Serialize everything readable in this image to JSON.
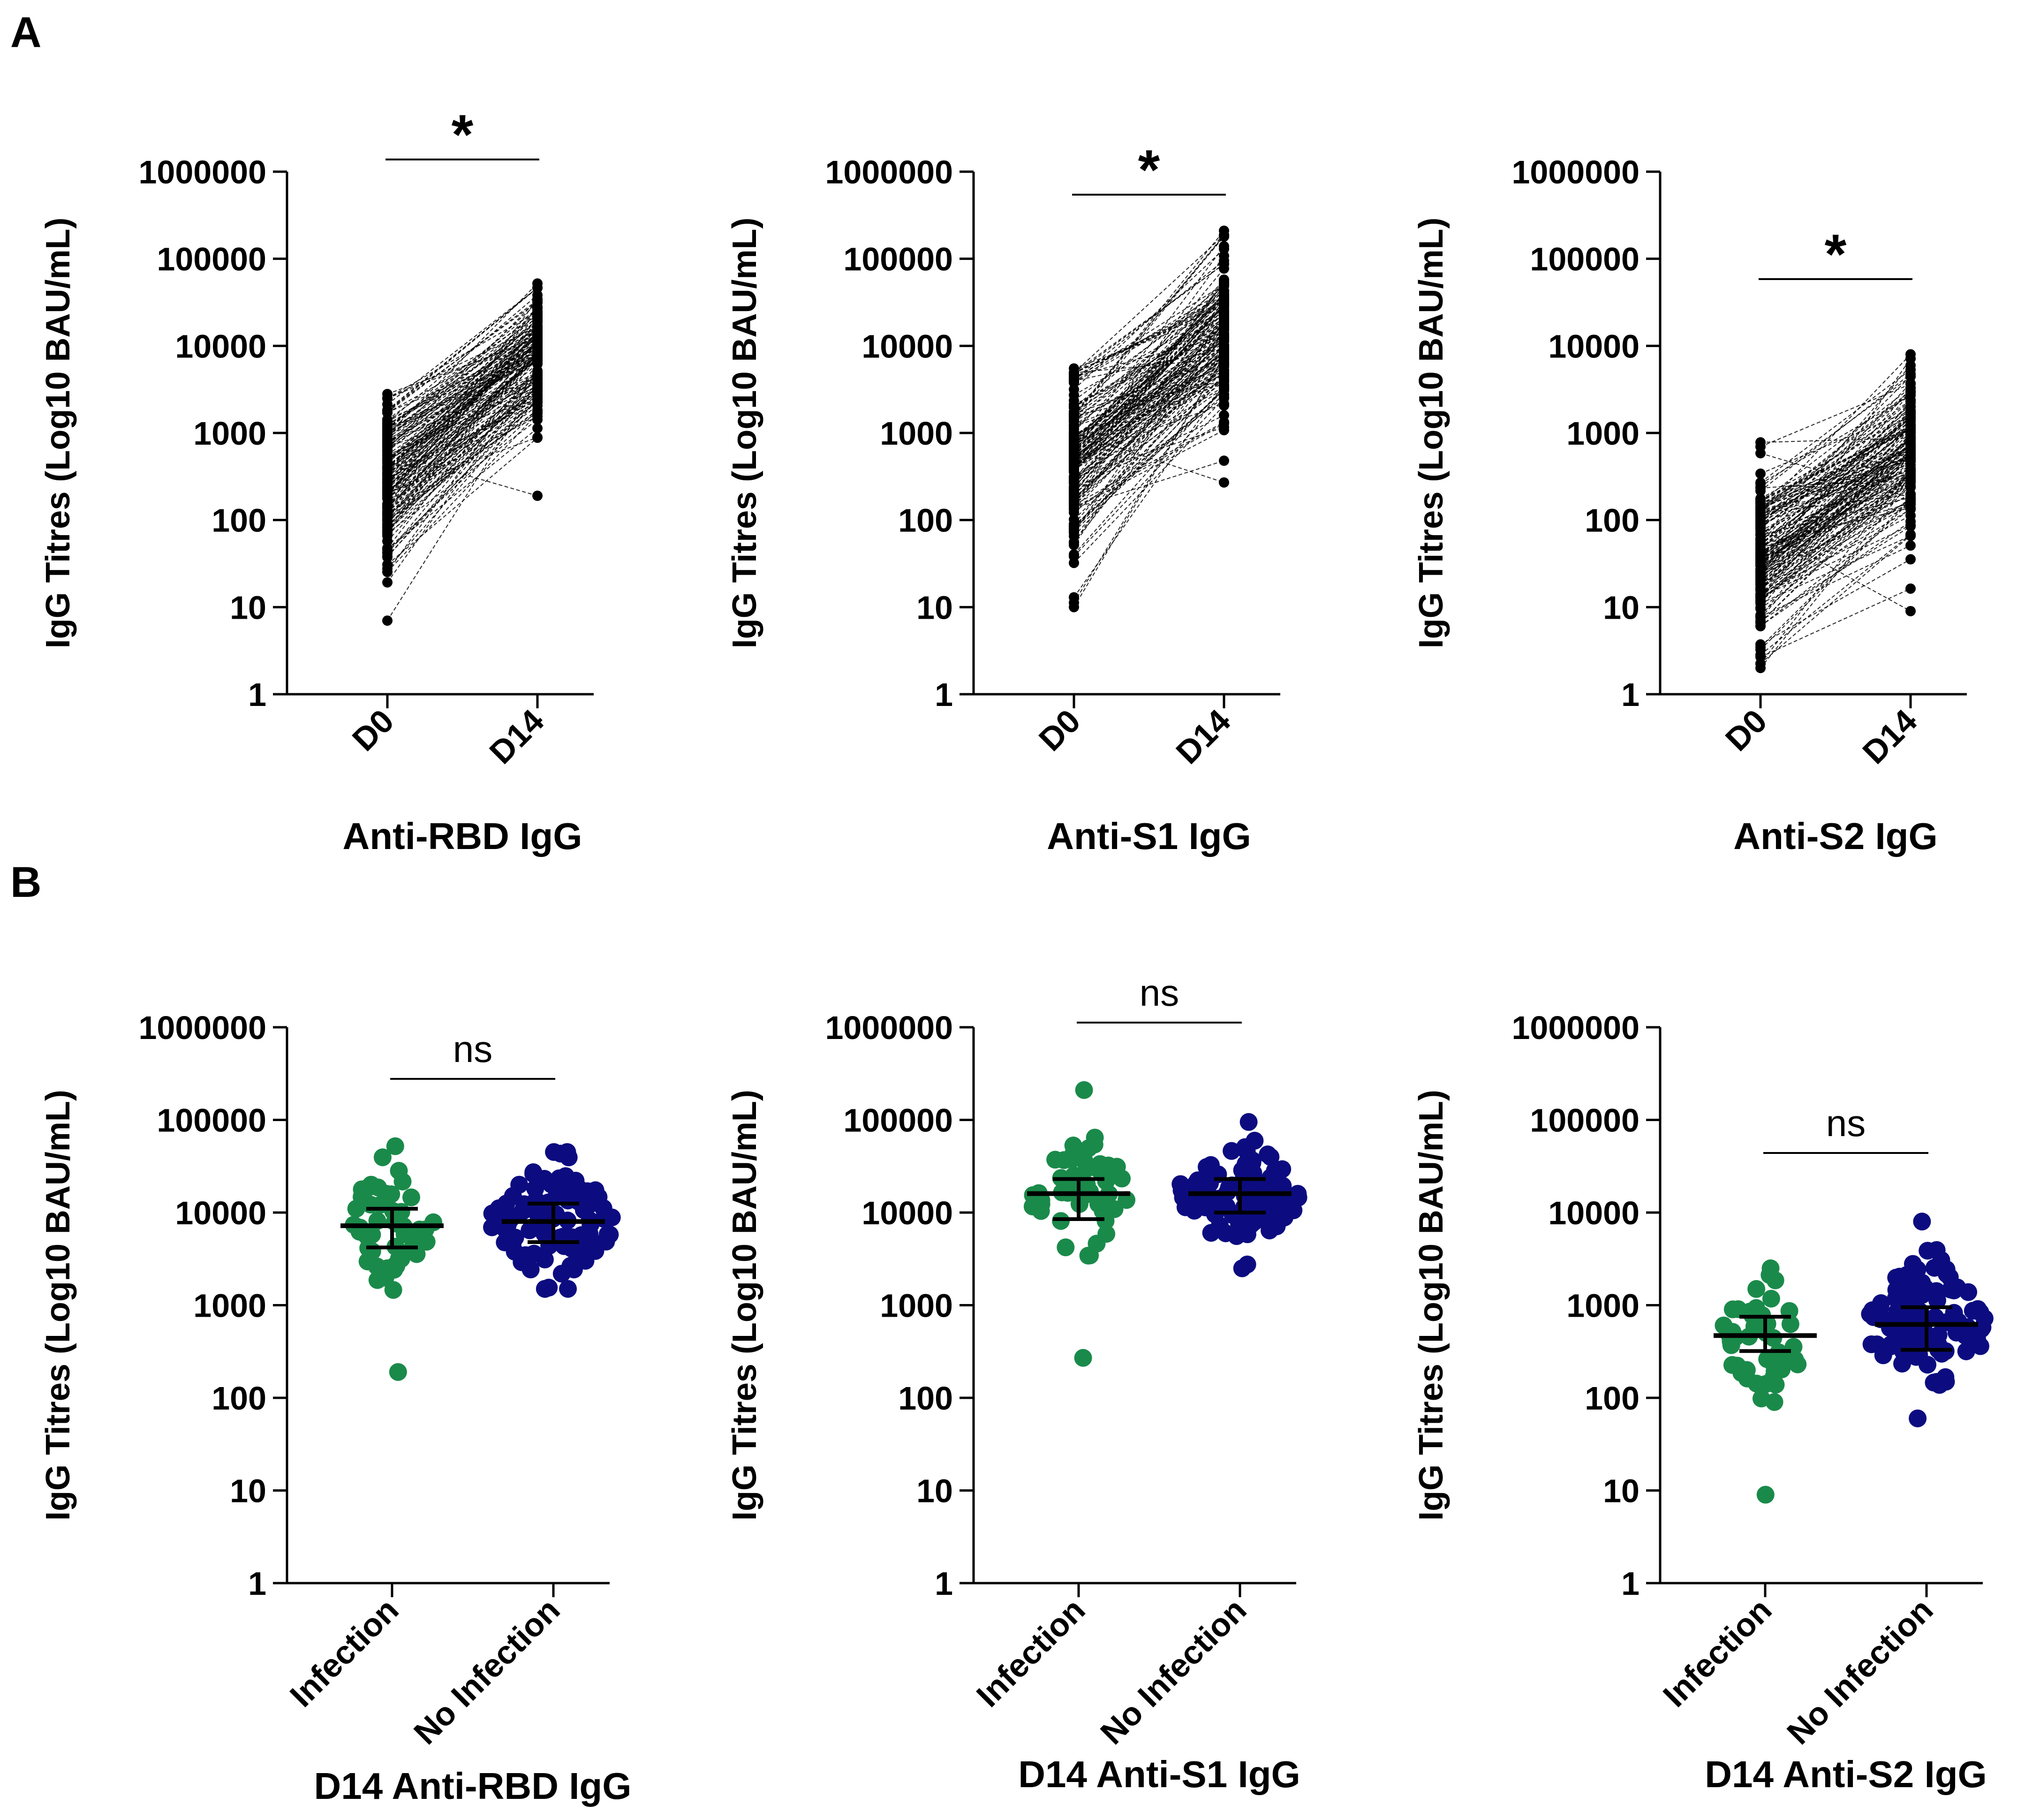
{
  "panels": {
    "A": {
      "label": "A"
    },
    "B": {
      "label": "B"
    }
  },
  "chart_data": [
    {
      "type": "paired-line",
      "panel": "A",
      "title": "",
      "xlabel": "Anti-RBD IgG",
      "ylabel": "IgG Titres (Log10 BAU/mL)",
      "yscale": "log",
      "ylim": [
        1,
        1000000
      ],
      "yticks": [
        "1",
        "10",
        "100",
        "1000",
        "10000",
        "100000",
        "1000000"
      ],
      "categories": [
        "D0",
        "D14"
      ],
      "n_pairs": 160,
      "d0_range": [
        7,
        2800
      ],
      "d14_range": [
        190,
        52000
      ],
      "d0_median": 300,
      "d14_median": 7500,
      "significance": "*"
    },
    {
      "type": "paired-line",
      "panel": "A",
      "title": "",
      "xlabel": "Anti-S1 IgG",
      "ylabel": "IgG Titres (Log10 BAU/mL)",
      "yscale": "log",
      "ylim": [
        1,
        1000000
      ],
      "yticks": [
        "1",
        "10",
        "100",
        "1000",
        "10000",
        "100000",
        "1000000"
      ],
      "categories": [
        "D0",
        "D14"
      ],
      "n_pairs": 160,
      "d0_range": [
        10,
        5500
      ],
      "d14_range": [
        270,
        210000
      ],
      "d0_median": 500,
      "d14_median": 15000,
      "significance": "*"
    },
    {
      "type": "paired-line",
      "panel": "A",
      "title": "",
      "xlabel": "Anti-S2 IgG",
      "ylabel": "IgG Titres (Log10 BAU/mL)",
      "yscale": "log",
      "ylim": [
        1,
        1000000
      ],
      "yticks": [
        "1",
        "10",
        "100",
        "1000",
        "10000",
        "100000",
        "1000000"
      ],
      "categories": [
        "D0",
        "D14"
      ],
      "n_pairs": 160,
      "d0_range": [
        2,
        780
      ],
      "d14_range": [
        9,
        8000
      ],
      "d0_median": 40,
      "d14_median": 550,
      "significance": "*"
    },
    {
      "type": "scatter",
      "panel": "B",
      "title": "",
      "xlabel": "D14 Anti-RBD IgG",
      "ylabel": "IgG Titres (Log10 BAU/mL)",
      "yscale": "log",
      "ylim": [
        1,
        1000000
      ],
      "yticks": [
        "1",
        "10",
        "100",
        "1000",
        "10000",
        "100000",
        "1000000"
      ],
      "categories": [
        "Infection",
        "No Infection"
      ],
      "series": [
        {
          "name": "Infection",
          "color": "#1a8a4a",
          "n": 50,
          "median": 7200,
          "iqr": [
            4200,
            11000
          ],
          "min": 190,
          "max": 52000
        },
        {
          "name": "No Infection",
          "color": "#0c0c80",
          "n": 110,
          "median": 8000,
          "iqr": [
            4800,
            12500
          ],
          "min": 1500,
          "max": 45000
        }
      ],
      "significance": "ns"
    },
    {
      "type": "scatter",
      "panel": "B",
      "title": "",
      "xlabel": "D14 Anti-S1 IgG",
      "ylabel": "IgG Titres (Log10 BAU/mL)",
      "yscale": "log",
      "ylim": [
        1,
        1000000
      ],
      "yticks": [
        "1",
        "10",
        "100",
        "1000",
        "10000",
        "100000",
        "1000000"
      ],
      "categories": [
        "Infection",
        "No Infection"
      ],
      "series": [
        {
          "name": "Infection",
          "color": "#1a8a4a",
          "n": 50,
          "median": 16000,
          "iqr": [
            8500,
            23000
          ],
          "min": 270,
          "max": 210000
        },
        {
          "name": "No Infection",
          "color": "#0c0c80",
          "n": 110,
          "median": 16000,
          "iqr": [
            10000,
            23000
          ],
          "min": 2500,
          "max": 95000
        }
      ],
      "significance": "ns"
    },
    {
      "type": "scatter",
      "panel": "B",
      "title": "",
      "xlabel": "D14 Anti-S2 IgG",
      "ylabel": "IgG Titres (Log10 BAU/mL)",
      "yscale": "log",
      "ylim": [
        1,
        1000000
      ],
      "yticks": [
        "1",
        "10",
        "100",
        "1000",
        "10000",
        "100000",
        "1000000"
      ],
      "categories": [
        "Infection",
        "No Infection"
      ],
      "series": [
        {
          "name": "Infection",
          "color": "#1a8a4a",
          "n": 50,
          "median": 470,
          "iqr": [
            320,
            750
          ],
          "min": 9,
          "max": 2500
        },
        {
          "name": "No Infection",
          "color": "#0c0c80",
          "n": 110,
          "median": 620,
          "iqr": [
            330,
            950
          ],
          "min": 60,
          "max": 8000
        }
      ],
      "significance": "ns"
    }
  ]
}
